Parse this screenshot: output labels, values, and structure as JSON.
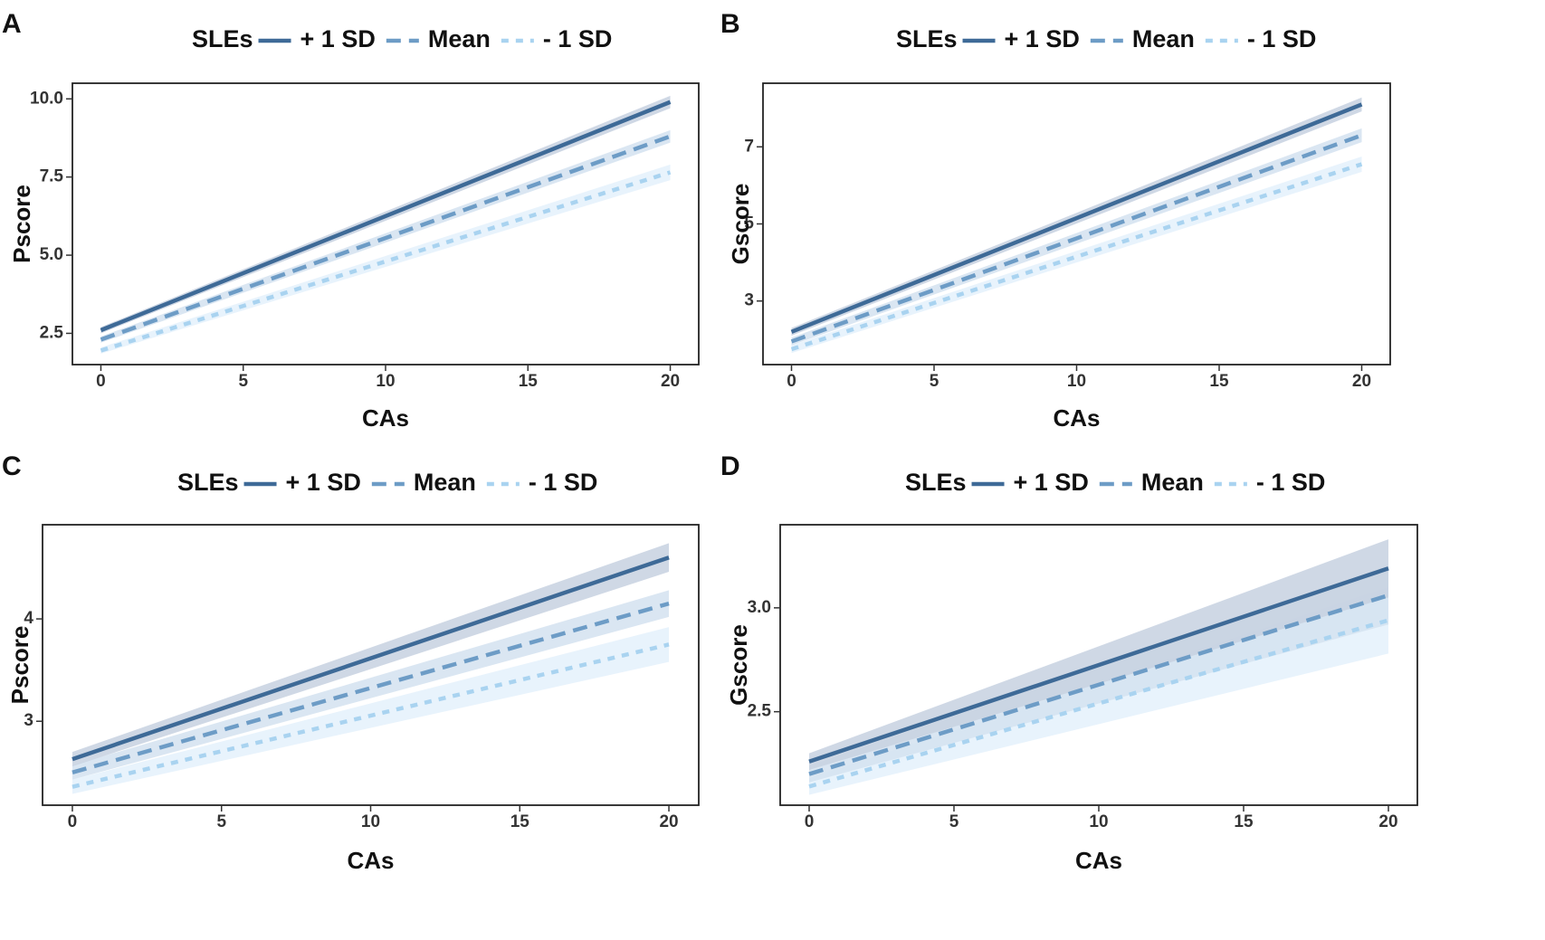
{
  "colors": {
    "plus_sd": "#3e6a97",
    "mean": "#6d9cc6",
    "minus_sd": "#a9d3f0",
    "band_plus_sd": "#c7d1e0",
    "band_mean": "#d4e2f0",
    "band_minus_sd": "#e4f1fb",
    "frame": "#222222",
    "text": "#111111"
  },
  "chart_data": [
    {
      "panel": "A",
      "type": "line",
      "legend_title": "SLEs",
      "legend_position": "top",
      "xlabel": "CAs",
      "ylabel": "Pscore",
      "xlim": [
        -1,
        21
      ],
      "ylim": [
        1.5,
        10.5
      ],
      "xticks": [
        0,
        5,
        10,
        15,
        20
      ],
      "yticks": [
        2.5,
        5.0,
        7.5,
        10.0
      ],
      "ytick_labels": [
        "2.5",
        "5.0",
        "7.5",
        "10.0"
      ],
      "x": [
        0,
        20
      ],
      "series": [
        {
          "name": "+ 1 SD",
          "style": "solid",
          "values": [
            2.6,
            9.9
          ],
          "lower": [
            2.5,
            9.7
          ],
          "upper": [
            2.7,
            10.1
          ]
        },
        {
          "name": "Mean",
          "style": "dashed",
          "values": [
            2.3,
            8.8
          ],
          "lower": [
            2.2,
            8.6
          ],
          "upper": [
            2.4,
            9.0
          ]
        },
        {
          "name": "- 1 SD",
          "style": "dotted",
          "values": [
            1.95,
            7.65
          ],
          "lower": [
            1.85,
            7.4
          ],
          "upper": [
            2.05,
            7.9
          ]
        }
      ]
    },
    {
      "panel": "B",
      "type": "line",
      "legend_title": "SLEs",
      "legend_position": "top",
      "xlabel": "CAs",
      "ylabel": "Gscore",
      "xlim": [
        -1,
        21
      ],
      "ylim": [
        1.35,
        8.65
      ],
      "xticks": [
        0,
        5,
        10,
        15,
        20
      ],
      "yticks": [
        3,
        5,
        7
      ],
      "ytick_labels": [
        "3",
        "5",
        "7"
      ],
      "x": [
        0,
        20
      ],
      "series": [
        {
          "name": "+ 1 SD",
          "style": "solid",
          "values": [
            2.2,
            8.1
          ],
          "lower": [
            2.1,
            7.92
          ],
          "upper": [
            2.3,
            8.28
          ]
        },
        {
          "name": "Mean",
          "style": "dashed",
          "values": [
            1.95,
            7.3
          ],
          "lower": [
            1.85,
            7.12
          ],
          "upper": [
            2.05,
            7.48
          ]
        },
        {
          "name": "- 1 SD",
          "style": "dotted",
          "values": [
            1.75,
            6.55
          ],
          "lower": [
            1.65,
            6.35
          ],
          "upper": [
            1.85,
            6.75
          ]
        }
      ]
    },
    {
      "panel": "C",
      "type": "line",
      "legend_title": "SLEs",
      "legend_position": "top",
      "xlabel": "CAs",
      "ylabel": "Pscore",
      "xlim": [
        -1,
        21
      ],
      "ylim": [
        2.18,
        4.92
      ],
      "xticks": [
        0,
        5,
        10,
        15,
        20
      ],
      "yticks": [
        3,
        4
      ],
      "ytick_labels": [
        "3",
        "4"
      ],
      "x": [
        0,
        20
      ],
      "series": [
        {
          "name": "+ 1 SD",
          "style": "solid",
          "values": [
            2.63,
            4.6
          ],
          "lower": [
            2.56,
            4.46
          ],
          "upper": [
            2.7,
            4.74
          ]
        },
        {
          "name": "Mean",
          "style": "dashed",
          "values": [
            2.5,
            4.15
          ],
          "lower": [
            2.43,
            4.02
          ],
          "upper": [
            2.57,
            4.28
          ]
        },
        {
          "name": "- 1 SD",
          "style": "dotted",
          "values": [
            2.36,
            3.75
          ],
          "lower": [
            2.29,
            3.58
          ],
          "upper": [
            2.43,
            3.92
          ]
        }
      ]
    },
    {
      "panel": "D",
      "type": "line",
      "legend_title": "SLEs",
      "legend_position": "top",
      "xlabel": "CAs",
      "ylabel": "Gscore",
      "xlim": [
        -1,
        21
      ],
      "ylim": [
        2.05,
        3.4
      ],
      "xticks": [
        0,
        5,
        10,
        15,
        20
      ],
      "yticks": [
        2.5,
        3.0
      ],
      "ytick_labels": [
        "2.5",
        "3.0"
      ],
      "x": [
        0,
        20
      ],
      "series": [
        {
          "name": "+ 1 SD",
          "style": "solid",
          "values": [
            2.26,
            3.19
          ],
          "lower": [
            2.22,
            3.05
          ],
          "upper": [
            2.3,
            3.33
          ]
        },
        {
          "name": "Mean",
          "style": "dashed",
          "values": [
            2.2,
            3.06
          ],
          "lower": [
            2.16,
            2.92
          ],
          "upper": [
            2.24,
            3.2
          ]
        },
        {
          "name": "- 1 SD",
          "style": "dotted",
          "values": [
            2.14,
            2.94
          ],
          "lower": [
            2.1,
            2.78
          ],
          "upper": [
            2.18,
            3.1
          ]
        }
      ]
    }
  ]
}
